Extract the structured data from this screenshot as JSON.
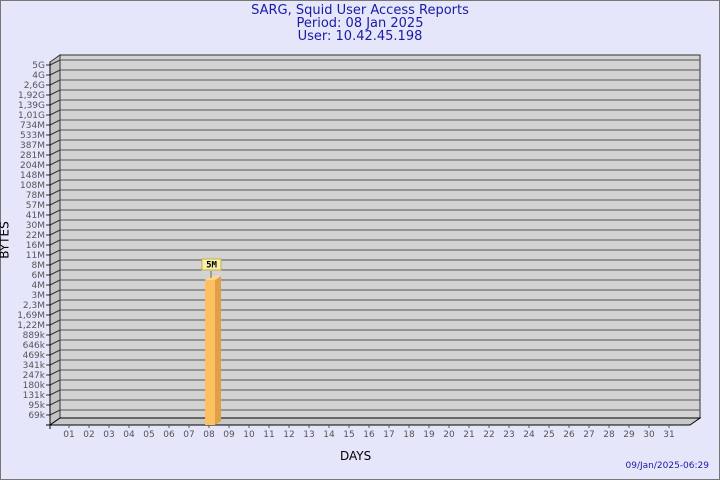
{
  "header": {
    "title": "SARG, Squid User Access Reports",
    "period": "Period: 08 Jan 2025",
    "user": "User: 10.42.45.198"
  },
  "footer": {
    "timestamp": "09/Jan/2025-06:29"
  },
  "colors": {
    "background": "#e6e6fa",
    "plot": "#d3d3d3",
    "bar": "#fcc060",
    "bar_side": "#dfa048",
    "text": "#1a1aa6"
  },
  "chart_data": {
    "type": "bar",
    "xlabel": "DAYS",
    "ylabel": "BYTES",
    "yscale": "log",
    "ytick_labels": [
      "5G",
      "4G",
      "2,6G",
      "1,92G",
      "1,39G",
      "1,01G",
      "734M",
      "533M",
      "387M",
      "281M",
      "204M",
      "148M",
      "108M",
      "78M",
      "57M",
      "41M",
      "30M",
      "22M",
      "16M",
      "11M",
      "8M",
      "6M",
      "4M",
      "3M",
      "2,3M",
      "1,69M",
      "1,22M",
      "889k",
      "646k",
      "469k",
      "341k",
      "247k",
      "180k",
      "131k",
      "95k",
      "69k"
    ],
    "categories": [
      "01",
      "02",
      "03",
      "04",
      "05",
      "06",
      "07",
      "08",
      "09",
      "10",
      "11",
      "12",
      "13",
      "14",
      "15",
      "16",
      "17",
      "18",
      "19",
      "20",
      "21",
      "22",
      "23",
      "24",
      "25",
      "26",
      "27",
      "28",
      "29",
      "30",
      "31"
    ],
    "bars": [
      {
        "day": "08",
        "value_label": "5M"
      }
    ],
    "grid": true
  }
}
